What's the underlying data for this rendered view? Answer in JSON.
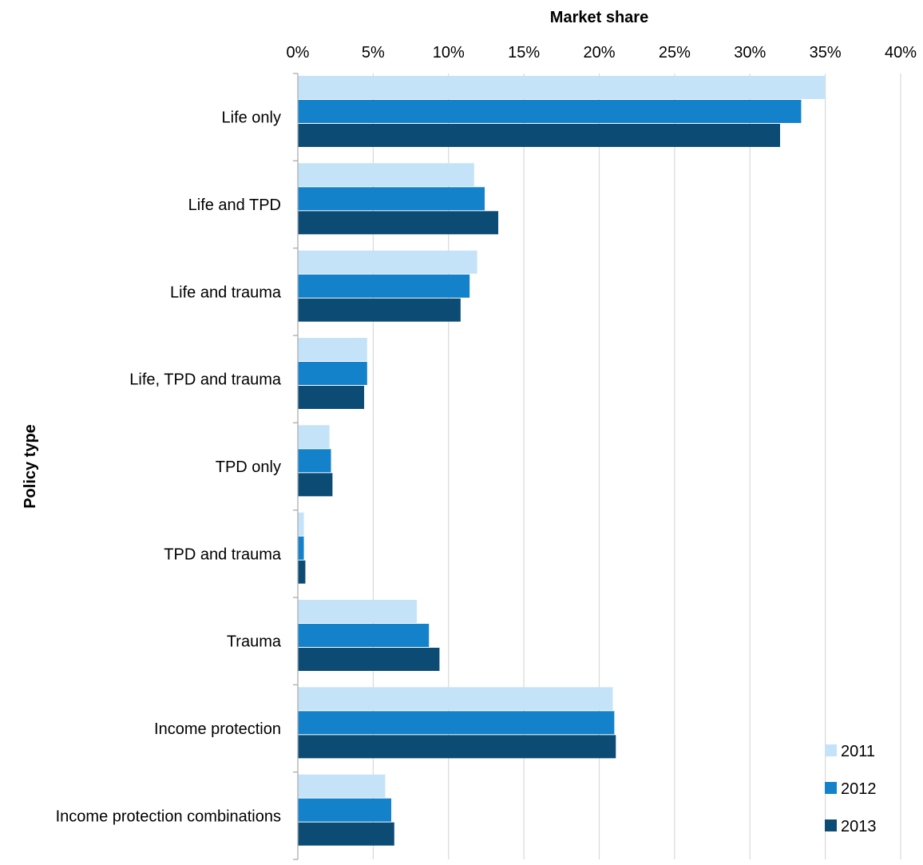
{
  "chart_data": {
    "type": "bar",
    "orientation": "horizontal",
    "xlabel": "Market share",
    "ylabel": "Policy type",
    "xlim": [
      0,
      40
    ],
    "x_tick_values": [
      0,
      5,
      10,
      15,
      20,
      25,
      30,
      35,
      40
    ],
    "x_tick_labels": [
      "0%",
      "5%",
      "10%",
      "15%",
      "20%",
      "25%",
      "30%",
      "35%",
      "40%"
    ],
    "x_axis_position": "top",
    "grid": "vertical",
    "legend_position": "bottom-right",
    "categories": [
      "Life only",
      "Life and TPD",
      "Life and trauma",
      "Life, TPD and trauma",
      "TPD only",
      "TPD and trauma",
      "Trauma",
      "Income protection",
      "Income protection combinations"
    ],
    "series": [
      {
        "name": "2011",
        "color": "#c5e3f8",
        "values": [
          35.0,
          11.7,
          11.9,
          4.6,
          2.1,
          0.4,
          7.9,
          20.9,
          5.8
        ]
      },
      {
        "name": "2012",
        "color": "#1482cb",
        "values": [
          33.4,
          12.4,
          11.4,
          4.6,
          2.2,
          0.4,
          8.7,
          21.0,
          6.2
        ]
      },
      {
        "name": "2013",
        "color": "#0b4b74",
        "values": [
          32.0,
          13.3,
          10.8,
          4.4,
          2.3,
          0.5,
          9.4,
          21.1,
          6.4
        ]
      }
    ]
  }
}
